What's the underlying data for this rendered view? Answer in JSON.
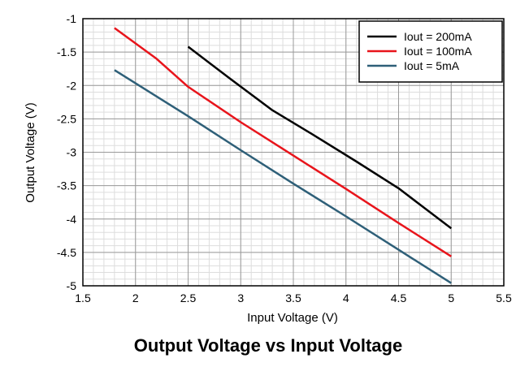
{
  "chart_data": {
    "type": "line",
    "title": "Output Voltage vs Input Voltage",
    "xlabel": "Input Voltage (V)",
    "ylabel": "Output Voltage (V)",
    "xlim": [
      1.5,
      5.5
    ],
    "ylim": [
      -5,
      -1
    ],
    "xticks": [
      "1.5",
      "2",
      "2.5",
      "3",
      "3.5",
      "4",
      "4.5",
      "5",
      "5.5"
    ],
    "yticks": [
      "-1",
      "-1.5",
      "-2",
      "-2.5",
      "-3",
      "-3.5",
      "-4",
      "-4.5",
      "-5"
    ],
    "grid": true,
    "legend_position": "top-right",
    "series": [
      {
        "name": "Iout = 200mA",
        "color": "#000000",
        "x": [
          2.5,
          2.9,
          3.3,
          3.7,
          4.1,
          4.5,
          5.0
        ],
        "y": [
          -1.42,
          -1.9,
          -2.37,
          -2.75,
          -3.14,
          -3.54,
          -4.14
        ]
      },
      {
        "name": "Iout = 100mA",
        "color": "#e8141b",
        "x": [
          1.8,
          2.2,
          2.5,
          3.0,
          3.5,
          4.0,
          4.5,
          5.0
        ],
        "y": [
          -1.14,
          -1.6,
          -2.02,
          -2.55,
          -3.05,
          -3.55,
          -4.06,
          -4.56
        ]
      },
      {
        "name": "Iout = 5mA",
        "color": "#2e5f78",
        "x": [
          1.8,
          2.5,
          3.0,
          3.5,
          4.0,
          4.5,
          5.0
        ],
        "y": [
          -1.77,
          -2.46,
          -2.97,
          -3.47,
          -3.96,
          -4.46,
          -4.96
        ]
      }
    ]
  }
}
